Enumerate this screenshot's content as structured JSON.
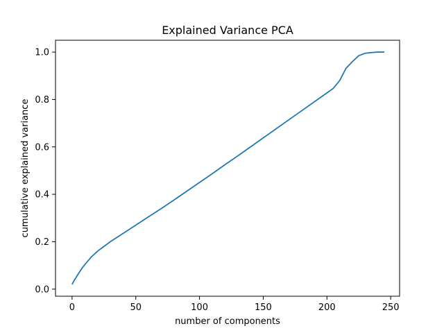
{
  "chart_data": {
    "type": "line",
    "title": "Explained Variance PCA",
    "xlabel": "number of components",
    "ylabel": "cumulative explained variance",
    "xlim": [
      -13,
      257
    ],
    "ylim": [
      -0.03,
      1.05
    ],
    "xticks": [
      0,
      50,
      100,
      150,
      200,
      250
    ],
    "xtick_labels": [
      "0",
      "50",
      "100",
      "150",
      "200",
      "250"
    ],
    "yticks": [
      0.0,
      0.2,
      0.4,
      0.6,
      0.8,
      1.0
    ],
    "ytick_labels": [
      "0.0",
      "0.2",
      "0.4",
      "0.6",
      "0.8",
      "1.0"
    ],
    "grid": false,
    "series": [
      {
        "color": "#1f77b4",
        "x": [
          0,
          2,
          5,
          8,
          11,
          15,
          20,
          25,
          30,
          40,
          50,
          60,
          70,
          80,
          90,
          100,
          110,
          120,
          130,
          140,
          150,
          160,
          170,
          180,
          190,
          200,
          205,
          210,
          215,
          220,
          225,
          230,
          235,
          240,
          245
        ],
        "y": [
          0.02,
          0.04,
          0.065,
          0.09,
          0.11,
          0.135,
          0.16,
          0.18,
          0.2,
          0.235,
          0.27,
          0.305,
          0.34,
          0.376,
          0.413,
          0.45,
          0.487,
          0.525,
          0.562,
          0.6,
          0.638,
          0.676,
          0.714,
          0.752,
          0.79,
          0.828,
          0.847,
          0.88,
          0.932,
          0.96,
          0.985,
          0.995,
          0.998,
          1.0,
          1.0
        ]
      }
    ]
  }
}
